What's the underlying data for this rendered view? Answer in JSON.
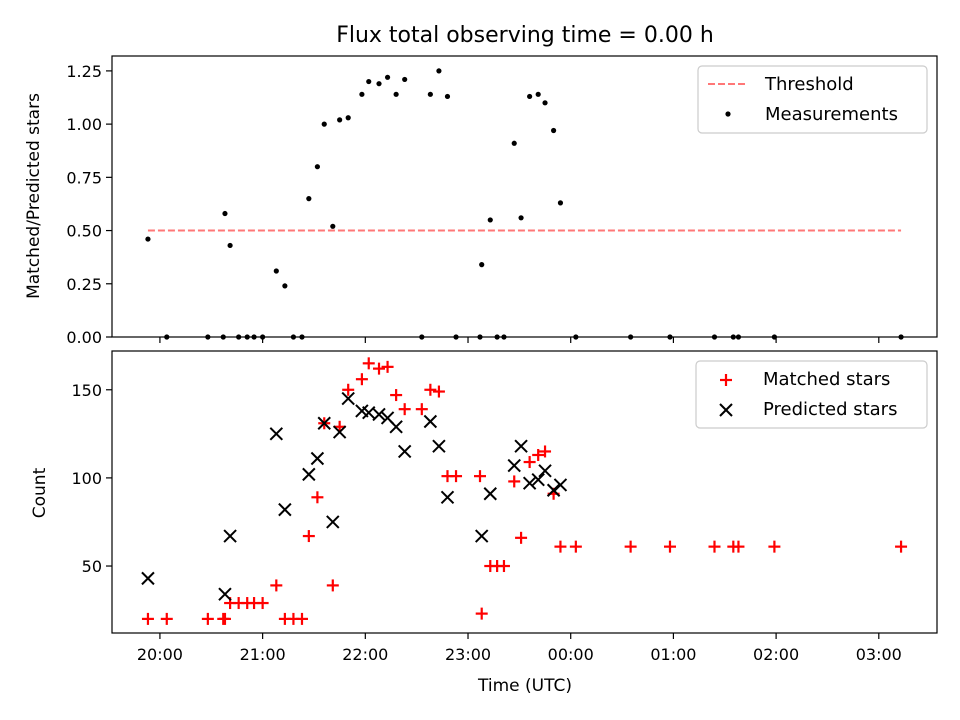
{
  "title": "Flux total observing time = 0.00 h",
  "xlabel": "Time (UTC)",
  "x_ticks": [
    "20:00",
    "21:00",
    "22:00",
    "23:00",
    "00:00",
    "01:00",
    "02:00",
    "03:00"
  ],
  "chart_data": [
    {
      "type": "scatter",
      "ylabel": "Matched/Predicted stars",
      "ylim": [
        0,
        1.32
      ],
      "y_ticks": [
        "0.00",
        "0.25",
        "0.50",
        "0.75",
        "1.00",
        "1.25"
      ],
      "y_tick_values": [
        0,
        0.25,
        0.5,
        0.75,
        1.0,
        1.25
      ],
      "legend_placement": "upper-right",
      "threshold": {
        "name": "Threshold",
        "value": 0.5,
        "x_start": "19:53",
        "x_end": "03:13",
        "color": "#ff7777"
      },
      "series": [
        {
          "name": "Measurements",
          "marker": "dot",
          "color": "#000000",
          "points": [
            [
              "19:53",
              0.46
            ],
            [
              "20:04",
              0
            ],
            [
              "20:28",
              0
            ],
            [
              "20:37",
              0
            ],
            [
              "20:38",
              0.58
            ],
            [
              "20:41",
              0.43
            ],
            [
              "20:46",
              0
            ],
            [
              "20:51",
              0
            ],
            [
              "20:55",
              0
            ],
            [
              "21:00",
              0
            ],
            [
              "21:08",
              0.31
            ],
            [
              "21:13",
              0.24
            ],
            [
              "21:18",
              0
            ],
            [
              "21:23",
              0
            ],
            [
              "21:27",
              0.65
            ],
            [
              "21:32",
              0.8
            ],
            [
              "21:36",
              1.0
            ],
            [
              "21:41",
              0.52
            ],
            [
              "21:45",
              1.02
            ],
            [
              "21:50",
              1.03
            ],
            [
              "21:58",
              1.14
            ],
            [
              "22:02",
              1.2
            ],
            [
              "22:08",
              1.19
            ],
            [
              "22:13",
              1.22
            ],
            [
              "22:18",
              1.14
            ],
            [
              "22:23",
              1.21
            ],
            [
              "22:33",
              0
            ],
            [
              "22:38",
              1.14
            ],
            [
              "22:43",
              1.25
            ],
            [
              "22:48",
              1.13
            ],
            [
              "22:53",
              0
            ],
            [
              "23:07",
              0
            ],
            [
              "23:08",
              0.34
            ],
            [
              "23:13",
              0.55
            ],
            [
              "23:17",
              0
            ],
            [
              "23:21",
              0
            ],
            [
              "23:27",
              0.91
            ],
            [
              "23:31",
              0.56
            ],
            [
              "23:36",
              1.13
            ],
            [
              "23:41",
              1.14
            ],
            [
              "23:45",
              1.1
            ],
            [
              "23:50",
              0.97
            ],
            [
              "23:54",
              0.63
            ],
            [
              "00:03",
              0
            ],
            [
              "00:35",
              0
            ],
            [
              "00:58",
              0
            ],
            [
              "01:24",
              0
            ],
            [
              "01:35",
              0
            ],
            [
              "01:38",
              0
            ],
            [
              "01:59",
              0
            ],
            [
              "03:13",
              0
            ]
          ]
        }
      ]
    },
    {
      "type": "scatter",
      "ylabel": "Count",
      "ylim": [
        12,
        172
      ],
      "y_ticks": [
        "50",
        "100",
        "150"
      ],
      "y_tick_values": [
        50,
        100,
        150
      ],
      "legend_placement": "upper-right",
      "series": [
        {
          "name": "Matched stars",
          "marker": "plus",
          "color": "#ff0000",
          "points": [
            [
              "19:53",
              20
            ],
            [
              "20:04",
              20
            ],
            [
              "20:28",
              20
            ],
            [
              "20:37",
              20
            ],
            [
              "20:38",
              20
            ],
            [
              "20:41",
              29
            ],
            [
              "20:46",
              29
            ],
            [
              "20:51",
              29
            ],
            [
              "20:55",
              29
            ],
            [
              "21:00",
              29
            ],
            [
              "21:08",
              39
            ],
            [
              "21:13",
              20
            ],
            [
              "21:18",
              20
            ],
            [
              "21:23",
              20
            ],
            [
              "21:27",
              67
            ],
            [
              "21:32",
              89
            ],
            [
              "21:36",
              131
            ],
            [
              "21:41",
              39
            ],
            [
              "21:45",
              129
            ],
            [
              "21:50",
              150
            ],
            [
              "21:58",
              156
            ],
            [
              "22:02",
              165
            ],
            [
              "22:08",
              162
            ],
            [
              "22:13",
              163
            ],
            [
              "22:18",
              147
            ],
            [
              "22:23",
              139
            ],
            [
              "22:33",
              139
            ],
            [
              "22:38",
              150
            ],
            [
              "22:43",
              149
            ],
            [
              "22:48",
              101
            ],
            [
              "22:53",
              101
            ],
            [
              "23:07",
              101
            ],
            [
              "23:08",
              23
            ],
            [
              "23:13",
              50
            ],
            [
              "23:17",
              50
            ],
            [
              "23:21",
              50
            ],
            [
              "23:27",
              98
            ],
            [
              "23:31",
              66
            ],
            [
              "23:36",
              109
            ],
            [
              "23:41",
              113
            ],
            [
              "23:45",
              115
            ],
            [
              "23:50",
              91
            ],
            [
              "23:54",
              61
            ],
            [
              "00:03",
              61
            ],
            [
              "00:35",
              61
            ],
            [
              "00:58",
              61
            ],
            [
              "01:24",
              61
            ],
            [
              "01:35",
              61
            ],
            [
              "01:38",
              61
            ],
            [
              "01:59",
              61
            ],
            [
              "03:13",
              61
            ]
          ]
        },
        {
          "name": "Predicted stars",
          "marker": "x",
          "color": "#000000",
          "points": [
            [
              "19:53",
              43
            ],
            [
              "20:38",
              34
            ],
            [
              "20:41",
              67
            ],
            [
              "21:08",
              125
            ],
            [
              "21:13",
              82
            ],
            [
              "21:27",
              102
            ],
            [
              "21:32",
              111
            ],
            [
              "21:36",
              131
            ],
            [
              "21:41",
              75
            ],
            [
              "21:45",
              126
            ],
            [
              "21:50",
              145
            ],
            [
              "21:58",
              138
            ],
            [
              "22:02",
              137
            ],
            [
              "22:08",
              136
            ],
            [
              "22:13",
              134
            ],
            [
              "22:18",
              129
            ],
            [
              "22:23",
              115
            ],
            [
              "22:38",
              132
            ],
            [
              "22:43",
              118
            ],
            [
              "22:48",
              89
            ],
            [
              "23:08",
              67
            ],
            [
              "23:13",
              91
            ],
            [
              "23:27",
              107
            ],
            [
              "23:31",
              118
            ],
            [
              "23:36",
              97
            ],
            [
              "23:41",
              99
            ],
            [
              "23:45",
              104
            ],
            [
              "23:50",
              93
            ],
            [
              "23:54",
              96
            ]
          ]
        }
      ]
    }
  ]
}
